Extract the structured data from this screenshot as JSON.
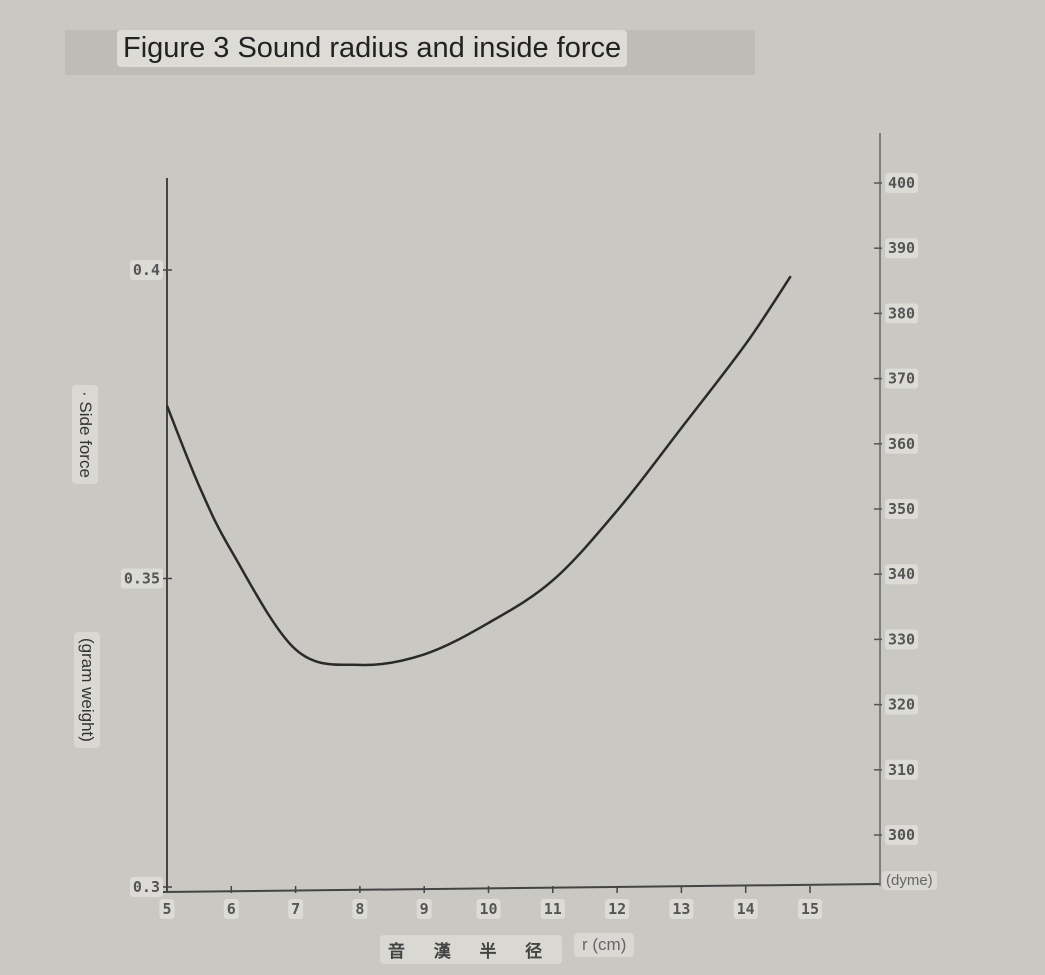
{
  "chart_data": {
    "type": "line",
    "title": "Figure 3 Sound radius and inside force",
    "xlabel_cjk": "音 漢 半 径",
    "xlabel": "r (cm)",
    "ylabel": [
      "· Side force",
      "(gram weight)"
    ],
    "y2label": "(dyme)",
    "xlim": [
      5,
      15
    ],
    "ylim": [
      0.3,
      0.4
    ],
    "y2lim": [
      300,
      400
    ],
    "x_ticks": [
      "5",
      "6",
      "7",
      "8",
      "9",
      "10",
      "11",
      "12",
      "13",
      "14",
      "15"
    ],
    "y_ticks": [
      "0.4",
      "0.35",
      "0.3"
    ],
    "y2_ticks": [
      "400",
      "390",
      "380",
      "370",
      "360",
      "350",
      "340",
      "330",
      "320",
      "310",
      "300"
    ],
    "grid": false,
    "series": [
      {
        "x": [
          5,
          5.5,
          6,
          7,
          8,
          9,
          10,
          11,
          12,
          13,
          14,
          14.7
        ],
        "y": [
          0.378,
          0.365,
          0.3545,
          0.3385,
          0.336,
          0.3377,
          0.3428,
          0.3497,
          0.361,
          0.3744,
          0.388,
          0.399
        ]
      }
    ]
  }
}
